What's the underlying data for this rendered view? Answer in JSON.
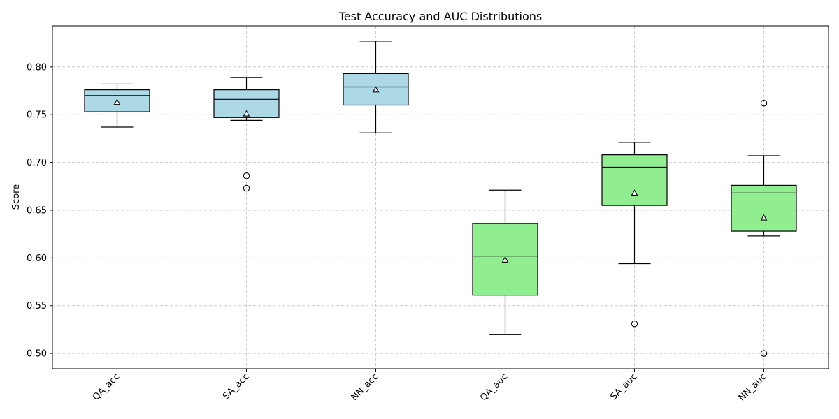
{
  "chart_data": {
    "type": "boxplot",
    "title": "Test Accuracy and AUC Distributions",
    "xlabel": "",
    "ylabel": "Score",
    "ylim": [
      0.484,
      0.843
    ],
    "yticks": [
      0.5,
      0.55,
      0.6,
      0.65,
      0.7,
      0.75,
      0.8
    ],
    "ytick_labels": [
      "0.50",
      "0.55",
      "0.60",
      "0.65",
      "0.70",
      "0.75",
      "0.80"
    ],
    "grid": true,
    "categories": [
      "QA_acc",
      "SA_acc",
      "NN_acc",
      "QA_auc",
      "SA_auc",
      "NN_auc"
    ],
    "colors": {
      "acc_box": "#add8e6",
      "auc_box": "#90ee90",
      "edge": "#000000",
      "grid": "#cccccc"
    },
    "boxes": [
      {
        "category": "QA_acc",
        "color_group": "acc_box",
        "whisker_low": 0.737,
        "q1": 0.753,
        "median": 0.77,
        "q3": 0.776,
        "whisker_high": 0.782,
        "mean": 0.763,
        "outliers": []
      },
      {
        "category": "SA_acc",
        "color_group": "acc_box",
        "whisker_low": 0.744,
        "q1": 0.747,
        "median": 0.766,
        "q3": 0.776,
        "whisker_high": 0.789,
        "mean": 0.751,
        "outliers": [
          0.686,
          0.673
        ]
      },
      {
        "category": "NN_acc",
        "color_group": "acc_box",
        "whisker_low": 0.731,
        "q1": 0.76,
        "median": 0.779,
        "q3": 0.793,
        "whisker_high": 0.827,
        "mean": 0.776,
        "outliers": []
      },
      {
        "category": "QA_auc",
        "color_group": "auc_box",
        "whisker_low": 0.52,
        "q1": 0.561,
        "median": 0.602,
        "q3": 0.636,
        "whisker_high": 0.671,
        "mean": 0.598,
        "outliers": []
      },
      {
        "category": "SA_auc",
        "color_group": "auc_box",
        "whisker_low": 0.594,
        "q1": 0.655,
        "median": 0.695,
        "q3": 0.708,
        "whisker_high": 0.721,
        "mean": 0.668,
        "outliers": [
          0.531
        ]
      },
      {
        "category": "NN_auc",
        "color_group": "auc_box",
        "whisker_low": 0.623,
        "q1": 0.628,
        "median": 0.668,
        "q3": 0.676,
        "whisker_high": 0.707,
        "mean": 0.642,
        "outliers": [
          0.762,
          0.5
        ]
      }
    ]
  }
}
